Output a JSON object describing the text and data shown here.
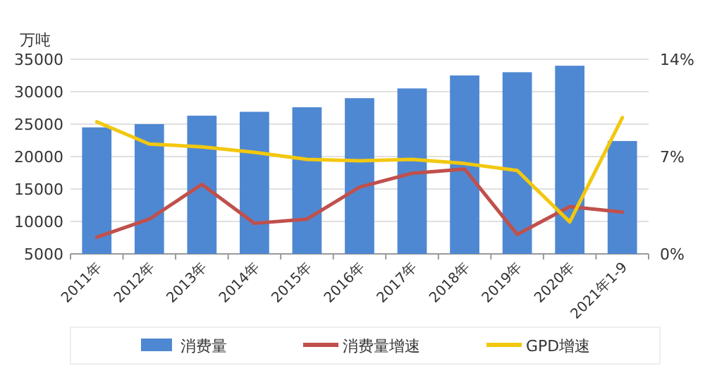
{
  "chart_data": {
    "type": "bar",
    "ylabel": "万吨",
    "categories": [
      "2011年",
      "2012年",
      "2013年",
      "2014年",
      "2015年",
      "2016年",
      "2017年",
      "2018年",
      "2019年",
      "2020年",
      "2021年1-9"
    ],
    "series": [
      {
        "name": "消费量",
        "color": "#4f88d2",
        "values": [
          24500,
          25000,
          26300,
          26900,
          27600,
          29000,
          30500,
          32500,
          33000,
          34000,
          22400
        ]
      },
      {
        "name": "消费量增速",
        "color": "#c0504d",
        "type": "line",
        "axis": "y2",
        "values": [
          1.2,
          2.5,
          5.0,
          2.2,
          2.5,
          4.8,
          5.8,
          6.1,
          1.4,
          3.4,
          3.0
        ]
      },
      {
        "name": "GPD增速",
        "color": "#f2c80f",
        "type": "line",
        "axis": "y2",
        "values": [
          9.5,
          7.9,
          7.7,
          7.3,
          6.8,
          6.7,
          6.8,
          6.5,
          6.0,
          2.3,
          9.8
        ]
      }
    ],
    "ylim": [
      5000,
      35000
    ],
    "yticks": [
      5000,
      10000,
      15000,
      20000,
      25000,
      30000,
      35000
    ],
    "y2lim": [
      0,
      14
    ],
    "y2ticks": [
      {
        "value": 0,
        "label": "0%"
      },
      {
        "value": 7,
        "label": "7%"
      },
      {
        "value": 14,
        "label": "14%"
      }
    ],
    "grid": "y",
    "legend": "bottom"
  }
}
